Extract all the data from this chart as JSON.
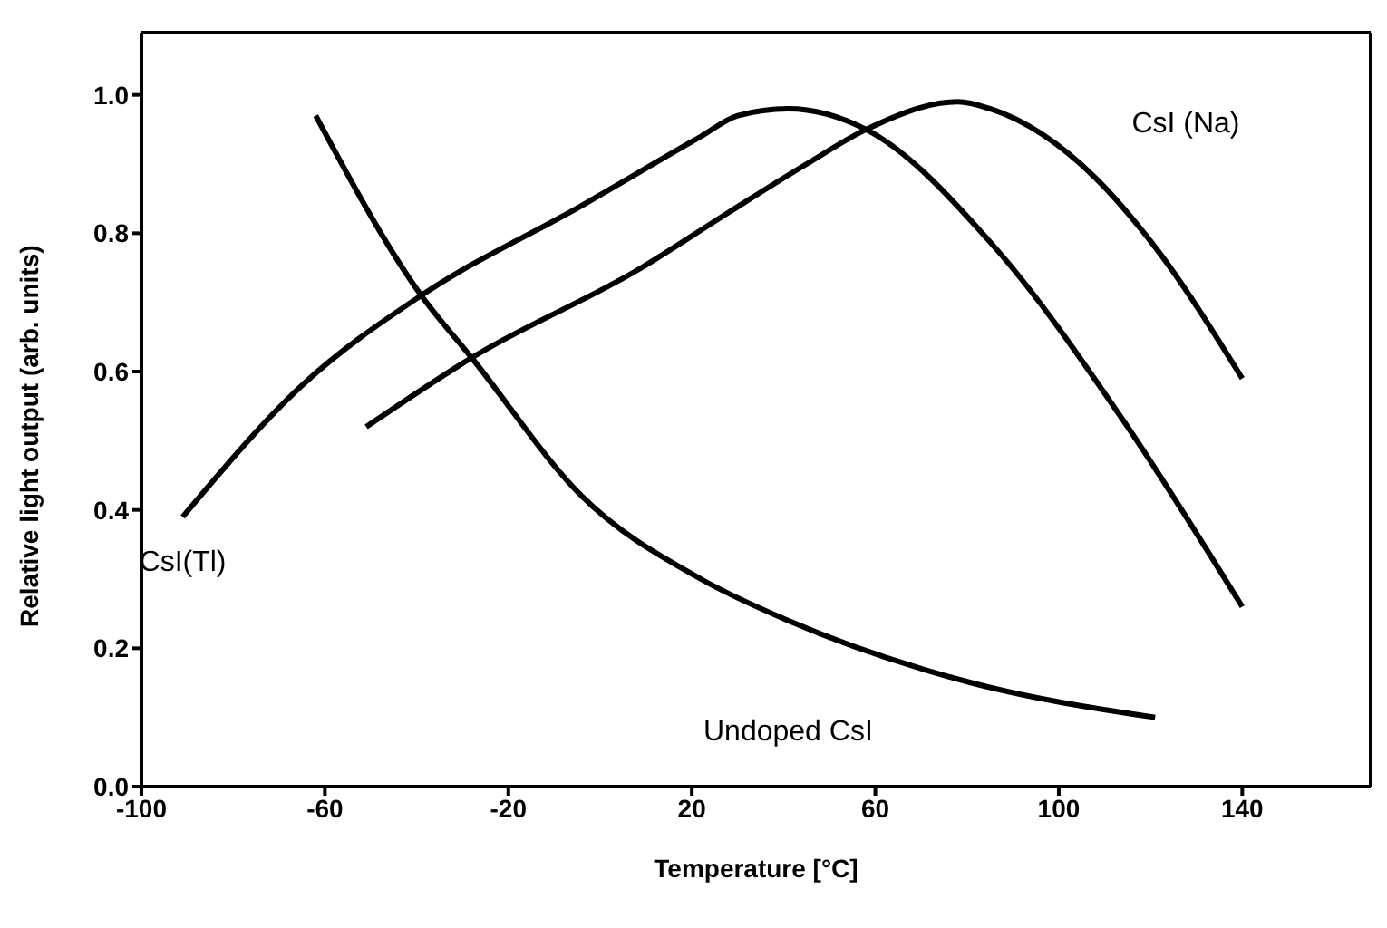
{
  "chart_data": {
    "type": "line",
    "xlabel": "Temperature [°C]",
    "ylabel": "Relative light output (arb. units)",
    "xlim": [
      -100,
      168
    ],
    "xticks": [
      -100,
      -60,
      -20,
      20,
      60,
      100,
      140
    ],
    "ylim": [
      0,
      1.09
    ],
    "yticks": [
      {
        "value": 0,
        "label": "0.0"
      },
      0.2,
      0.4,
      0.6,
      0.8,
      {
        "value": 1,
        "label": "1.0"
      }
    ],
    "marker": "none",
    "line_style": "solid",
    "series": [
      {
        "name": "CsI(Tl)",
        "color": "#000000",
        "x": [
          -91,
          -65,
          -39,
          -4,
          22,
          30,
          41,
          58,
          86,
          114,
          140
        ],
        "values": [
          0.39,
          0.58,
          0.71,
          0.84,
          0.94,
          0.97,
          0.98,
          0.95,
          0.78,
          0.53,
          0.26
        ]
      },
      {
        "name": "CsI (Na)",
        "color": "#000000",
        "x": [
          -51,
          -28,
          9,
          28,
          45,
          58,
          78,
          85,
          108,
          121,
          140
        ],
        "values": [
          0.52,
          0.62,
          0.75,
          0.83,
          0.9,
          0.95,
          0.99,
          0.98,
          0.88,
          0.78,
          0.59
        ]
      },
      {
        "name": "Undoped CsI",
        "color": "#000000",
        "x": [
          -62,
          -39,
          -28,
          -4,
          22,
          41,
          81,
          121
        ],
        "values": [
          0.97,
          0.71,
          0.62,
          0.42,
          0.3,
          0.24,
          0.15,
          0.1
        ]
      }
    ]
  }
}
